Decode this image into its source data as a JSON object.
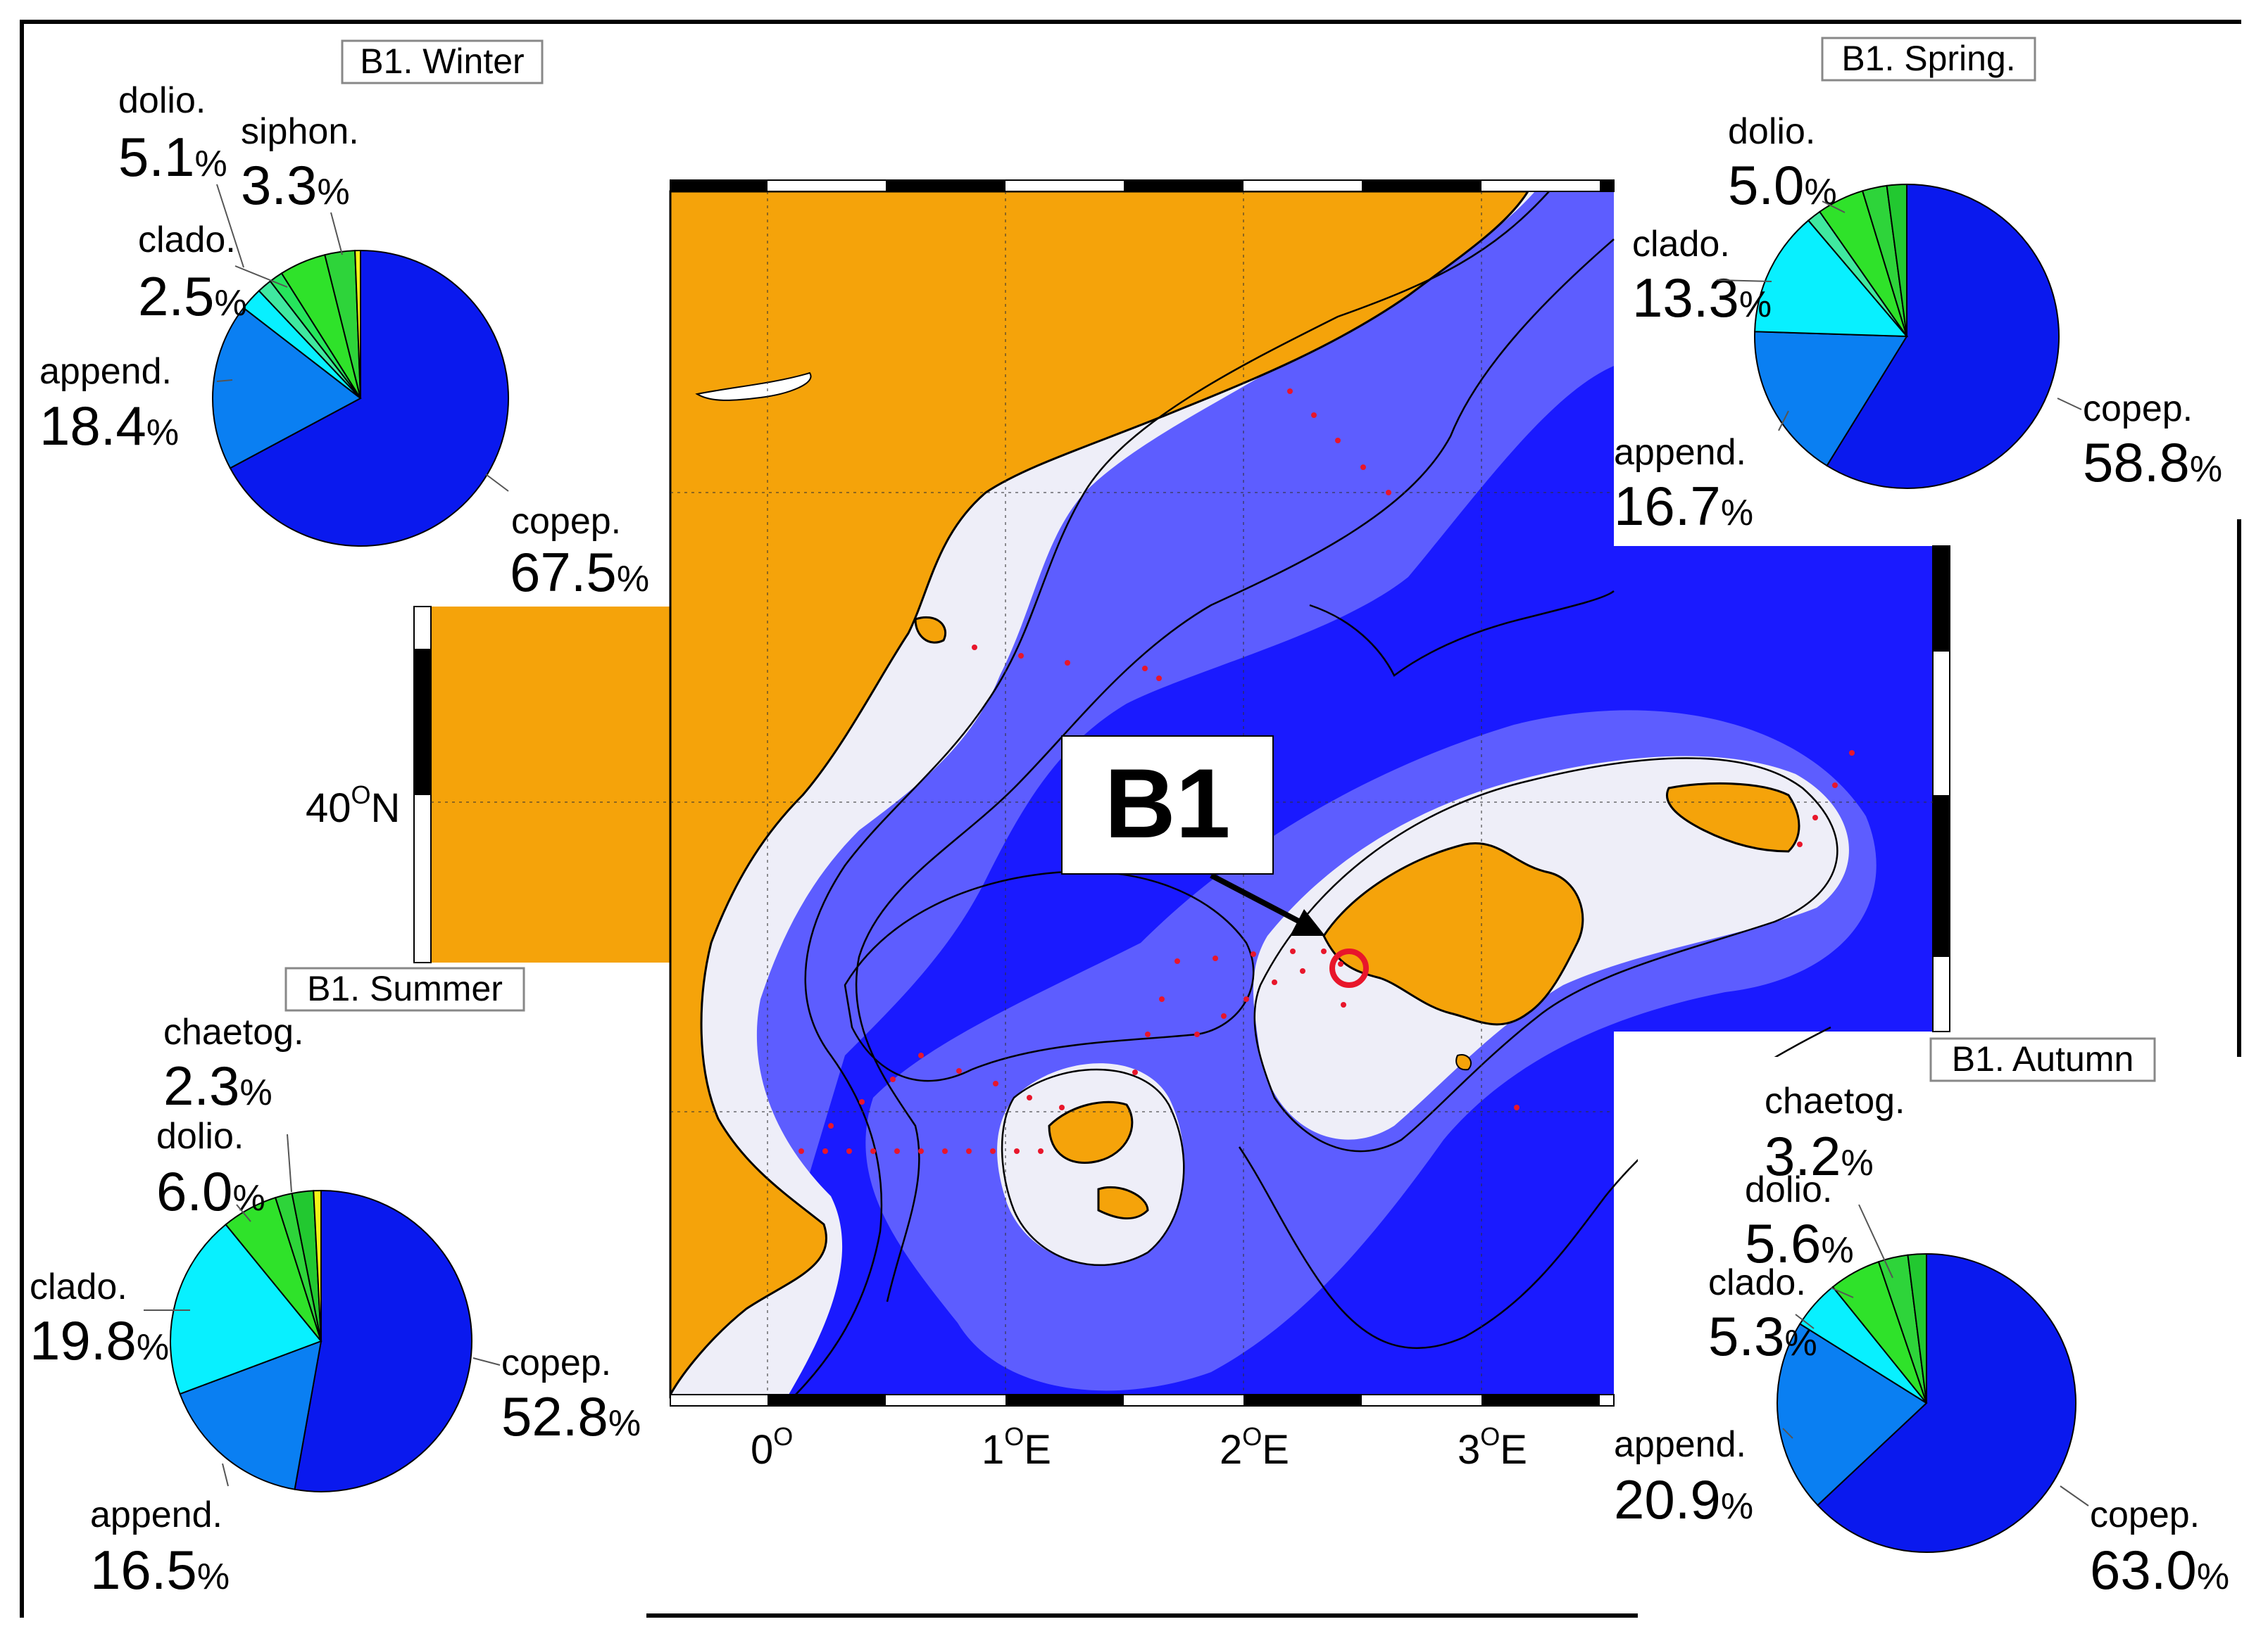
{
  "map": {
    "title_label": "B1",
    "lon_ticks": [
      "0",
      "1",
      "2",
      "3"
    ],
    "lon_suffix": "E",
    "lat_tick": "40",
    "lat_suffix": "N",
    "degree_symbol": "O",
    "colors": {
      "land": "#f5a30a",
      "shelf": "#eeeef8",
      "deep": "#1a1aff",
      "stations": "#e8162b",
      "highlight": "#e8162b"
    }
  },
  "charts": [
    {
      "title": "B1. Winter",
      "chart_data": {
        "type": "pie",
        "unit": "%",
        "slices": [
          {
            "label": "copep.",
            "value": 67.5,
            "color": "#0a19ee"
          },
          {
            "label": "append.",
            "value": 18.4,
            "color": "#0a7ff2"
          },
          {
            "label": "clado.",
            "value": 2.5,
            "color": "#08f0ff"
          },
          {
            "label": "",
            "value": 1.6,
            "color": "#40e8a0"
          },
          {
            "label": "",
            "value": 1.5,
            "color": "#26e55c"
          },
          {
            "label": "dolio.",
            "value": 5.1,
            "color": "#2fe22a"
          },
          {
            "label": "siphon.",
            "value": 3.3,
            "color": "#2ed43a"
          },
          {
            "label": "",
            "value": 0.6,
            "color": "#f5f516"
          }
        ]
      }
    },
    {
      "title": "B1. Spring.",
      "chart_data": {
        "type": "pie",
        "unit": "%",
        "slices": [
          {
            "label": "copep.",
            "value": 58.8,
            "color": "#0a19ee"
          },
          {
            "label": "append.",
            "value": 16.7,
            "color": "#0a7ff2"
          },
          {
            "label": "clado.",
            "value": 13.3,
            "color": "#08f0ff"
          },
          {
            "label": "",
            "value": 1.5,
            "color": "#40e8a0"
          },
          {
            "label": "dolio.",
            "value": 5.0,
            "color": "#2fe22a"
          },
          {
            "label": "",
            "value": 2.6,
            "color": "#2ed43a"
          },
          {
            "label": "",
            "value": 2.1,
            "color": "#22c830"
          }
        ]
      }
    },
    {
      "title": "B1. Summer",
      "chart_data": {
        "type": "pie",
        "unit": "%",
        "slices": [
          {
            "label": "copep.",
            "value": 52.8,
            "color": "#0a19ee"
          },
          {
            "label": "append.",
            "value": 16.5,
            "color": "#0a7ff2"
          },
          {
            "label": "clado.",
            "value": 19.8,
            "color": "#08f0ff"
          },
          {
            "label": "dolio.",
            "value": 6.0,
            "color": "#2fe22a"
          },
          {
            "label": "",
            "value": 1.8,
            "color": "#2ed43a"
          },
          {
            "label": "chaetog.",
            "value": 2.3,
            "color": "#22c830"
          },
          {
            "label": "",
            "value": 0.8,
            "color": "#f5f516"
          }
        ]
      }
    },
    {
      "title": "B1. Autumn",
      "chart_data": {
        "type": "pie",
        "unit": "%",
        "slices": [
          {
            "label": "copep.",
            "value": 63.0,
            "color": "#0a19ee"
          },
          {
            "label": "append.",
            "value": 20.9,
            "color": "#0a7ff2"
          },
          {
            "label": "clado.",
            "value": 5.3,
            "color": "#08f0ff"
          },
          {
            "label": "dolio.",
            "value": 5.6,
            "color": "#2fe22a"
          },
          {
            "label": "chaetog.",
            "value": 3.2,
            "color": "#2ed43a"
          },
          {
            "label": "",
            "value": 2.0,
            "color": "#22c830"
          }
        ]
      }
    }
  ]
}
